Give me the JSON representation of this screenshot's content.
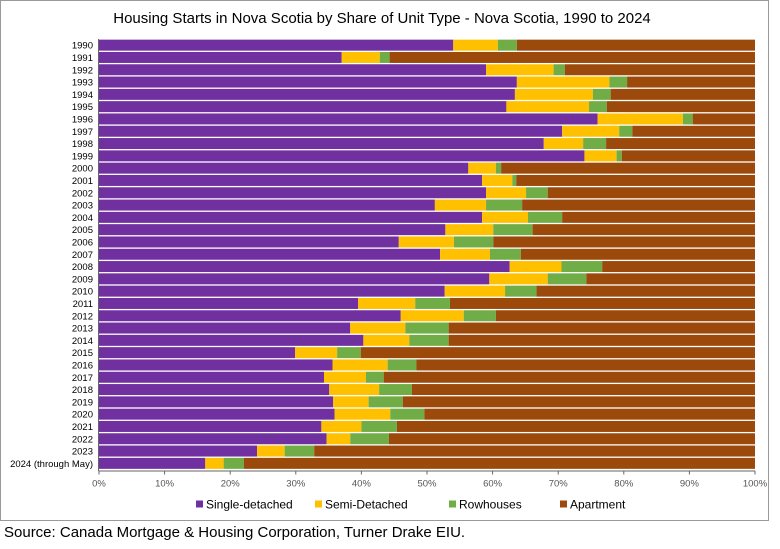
{
  "chart_data": {
    "type": "bar",
    "orientation": "horizontal",
    "stacked": "percent",
    "title": "Housing Starts in Nova Scotia by Share of Unit Type - Nova Scotia, 1990 to 2024",
    "xlabel": "",
    "ylabel": "",
    "xlim": [
      0,
      100
    ],
    "x_ticks": [
      "0%",
      "10%",
      "20%",
      "30%",
      "40%",
      "50%",
      "60%",
      "70%",
      "80%",
      "90%",
      "100%"
    ],
    "grid": false,
    "legend": "bottom",
    "categories": [
      "1990",
      "1991",
      "1992",
      "1993",
      "1994",
      "1995",
      "1996",
      "1997",
      "1998",
      "1999",
      "2000",
      "2001",
      "2002",
      "2003",
      "2004",
      "2005",
      "2006",
      "2007",
      "2008",
      "2009",
      "2010",
      "2011",
      "2012",
      "2013",
      "2014",
      "2015",
      "2016",
      "2017",
      "2018",
      "2019",
      "2020",
      "2021",
      "2022",
      "2023",
      "2024 (through May)"
    ],
    "series": [
      {
        "name": "Single-detached",
        "color": "#7030a0",
        "values": [
          54.0,
          37.0,
          59.0,
          63.7,
          63.4,
          62.1,
          76.0,
          70.6,
          67.8,
          74.0,
          56.3,
          58.4,
          59.0,
          51.2,
          58.4,
          52.8,
          45.7,
          52.0,
          62.6,
          59.5,
          52.7,
          39.5,
          46.0,
          38.3,
          40.3,
          29.9,
          35.6,
          34.3,
          35.1,
          35.7,
          35.9,
          33.9,
          34.7,
          24.1,
          16.2
        ]
      },
      {
        "name": "Semi-Detached",
        "color": "#ffc000",
        "values": [
          6.8,
          5.8,
          10.3,
          14.1,
          11.9,
          12.6,
          13.0,
          8.7,
          6.0,
          4.9,
          4.2,
          4.6,
          6.1,
          7.8,
          7.0,
          7.3,
          8.4,
          7.6,
          7.9,
          8.9,
          9.2,
          8.7,
          9.6,
          8.4,
          7.0,
          6.4,
          8.4,
          6.4,
          7.6,
          5.4,
          8.5,
          6.1,
          3.6,
          4.2,
          2.8
        ]
      },
      {
        "name": "Rowhouses",
        "color": "#70ad47",
        "values": [
          2.9,
          1.5,
          1.7,
          2.7,
          2.7,
          2.7,
          1.5,
          2.0,
          3.5,
          0.8,
          0.8,
          0.6,
          3.3,
          5.5,
          5.2,
          6.0,
          6.0,
          4.7,
          6.2,
          5.9,
          4.8,
          5.3,
          4.9,
          6.6,
          6.0,
          3.6,
          4.4,
          2.7,
          5.0,
          5.2,
          5.2,
          5.4,
          5.9,
          4.5,
          3.1
        ]
      },
      {
        "name": "Apartment",
        "color": "#9b4a0c",
        "values": [
          36.3,
          55.7,
          29.0,
          19.5,
          22.0,
          22.6,
          9.5,
          18.7,
          22.7,
          20.3,
          38.7,
          36.4,
          31.6,
          35.5,
          29.4,
          33.9,
          39.9,
          35.7,
          23.3,
          25.7,
          33.3,
          46.5,
          39.5,
          46.7,
          46.7,
          60.1,
          51.6,
          56.6,
          52.3,
          53.7,
          50.4,
          54.6,
          55.8,
          67.2,
          77.9
        ]
      }
    ]
  },
  "footer": {
    "source": "Source:  Canada Mortgage & Housing Corporation, Turner Drake EIU."
  }
}
